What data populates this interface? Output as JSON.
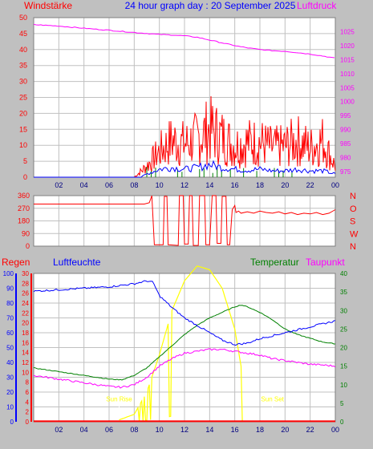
{
  "header": {
    "left": "Windstärke",
    "title": "24 hour graph day : 20 September 2025",
    "right": "Luftdruck"
  },
  "colors": {
    "wind": "#ff0000",
    "gust": "#0000ff",
    "wind_green": "#008000",
    "pressure": "#ff00ff",
    "direction": "#ff0000",
    "humidity": "#0000ff",
    "temperature": "#008000",
    "dewpoint": "#ff00ff",
    "rain": "#ff0000",
    "solar": "#ffff00",
    "axis_text": "#000080",
    "grid": "#ffffff"
  },
  "chart_data": [
    {
      "type": "line",
      "name": "wind-pressure",
      "x_ticks": [
        "02",
        "04",
        "06",
        "08",
        "10",
        "12",
        "14",
        "16",
        "18",
        "20",
        "22",
        "00"
      ],
      "y_left": {
        "ticks": [
          0,
          5,
          10,
          15,
          20,
          25,
          30,
          35,
          40,
          45,
          50
        ],
        "range": [
          0,
          50
        ]
      },
      "y_right": {
        "ticks": [
          975,
          980,
          985,
          990,
          995,
          1000,
          1005,
          1010,
          1015,
          1020,
          1025
        ],
        "range": [
          973,
          1030
        ]
      },
      "series": [
        {
          "key": "pressure",
          "axis": "right",
          "x": [
            0,
            2,
            4,
            6,
            8,
            10,
            11,
            12,
            13,
            14,
            15,
            16,
            17,
            18,
            19,
            20,
            21,
            22,
            23,
            24
          ],
          "y": [
            1027.5,
            1027,
            1026.2,
            1025.5,
            1024.7,
            1024,
            1023.8,
            1023.5,
            1023,
            1022,
            1021,
            1020,
            1019.2,
            1018.6,
            1018.2,
            1018,
            1017.5,
            1017,
            1016.3,
            1015.5
          ]
        },
        {
          "key": "wind_max",
          "axis": "left",
          "x": [
            0,
            8,
            9,
            10,
            11,
            12,
            13,
            14,
            15,
            16,
            17,
            18,
            19,
            20,
            21,
            22,
            23,
            24
          ],
          "y": [
            0,
            0,
            6,
            14,
            20,
            18,
            21,
            26,
            22,
            17,
            19,
            19,
            16,
            17,
            20,
            16,
            20,
            6
          ]
        },
        {
          "key": "gust_avg",
          "axis": "left",
          "x": [
            0,
            8.5,
            9,
            10,
            11,
            12,
            13,
            14,
            15,
            16,
            17,
            18,
            19,
            20,
            21,
            22,
            23,
            24
          ],
          "y": [
            0,
            0,
            1,
            2.5,
            3,
            2.5,
            3,
            4,
            3,
            2.5,
            2.2,
            2.5,
            2,
            2,
            2.5,
            2,
            2,
            1
          ]
        }
      ]
    },
    {
      "type": "line",
      "name": "wind-direction",
      "y_left": {
        "ticks": [
          0,
          90,
          180,
          270,
          360
        ],
        "range": [
          0,
          360
        ]
      },
      "y_right_labels": [
        "N",
        "W",
        "S",
        "O",
        "N"
      ],
      "series": [
        {
          "key": "direction",
          "x": [
            0,
            8.8,
            9.2,
            9.4,
            9.6,
            10.3,
            10.4,
            10.6,
            10.7,
            11.5,
            11.6,
            11.9,
            12.0,
            12.3,
            12.4,
            12.6,
            12.7,
            13.1,
            13.2,
            13.6,
            13.7,
            14.0,
            14.2,
            14.5,
            14.6,
            14.9,
            15.0,
            15.3,
            15.4,
            15.6,
            15.8,
            16.0,
            16.1,
            16.3,
            16.5,
            17,
            17.5,
            18,
            18.5,
            19,
            19.5,
            20,
            20.5,
            21,
            21.5,
            22,
            22.5,
            23,
            23.5,
            24
          ],
          "y": [
            300,
            300,
            310,
            360,
            10,
            10,
            355,
            355,
            10,
            5,
            360,
            360,
            15,
            15,
            360,
            360,
            5,
            5,
            360,
            360,
            10,
            10,
            360,
            360,
            20,
            20,
            355,
            355,
            10,
            10,
            260,
            290,
            240,
            250,
            235,
            245,
            235,
            250,
            240,
            235,
            245,
            230,
            240,
            225,
            235,
            230,
            240,
            225,
            235,
            260
          ]
        }
      ]
    },
    {
      "type": "line",
      "name": "humidity-temperature",
      "header": {
        "rain": "Regen",
        "humidity": "Luftfeuchte",
        "temperature": "Temperatur",
        "dewpoint": "Taupunkt"
      },
      "rain_axis": {
        "ticks": [
          0,
          2,
          4,
          6,
          8,
          10,
          12,
          14,
          16,
          18,
          20,
          22,
          24,
          26,
          28,
          30
        ],
        "range": [
          0,
          30
        ]
      },
      "humidity_axis": {
        "ticks": [
          0,
          10,
          20,
          30,
          40,
          50,
          60,
          70,
          80,
          90,
          100
        ],
        "range": [
          0,
          100
        ]
      },
      "temp_axis": {
        "ticks": [
          0,
          5,
          10,
          15,
          20,
          25,
          30,
          35,
          40
        ],
        "range": [
          0,
          40
        ]
      },
      "annotations": {
        "sunrise": "Sun Rise",
        "sunset": "Sun Set",
        "sunrise_x": 6.8,
        "sunset_x": 19.0
      },
      "series": [
        {
          "key": "humidity",
          "x": [
            0,
            2,
            4,
            6,
            7,
            8,
            9,
            9.5,
            10,
            11,
            12,
            13,
            14,
            15,
            16,
            17,
            18,
            19,
            20,
            21,
            22,
            23,
            24
          ],
          "y": [
            88,
            89,
            90,
            91,
            92,
            93,
            95,
            94,
            85,
            77,
            70,
            65,
            60,
            55,
            52,
            53,
            56,
            58,
            60,
            62,
            64,
            66,
            68
          ]
        },
        {
          "key": "temperature",
          "x": [
            0,
            2,
            4,
            6,
            7,
            8,
            9,
            10,
            11,
            12,
            13,
            14,
            15,
            16,
            16.5,
            17,
            18,
            19,
            20,
            21,
            22,
            23,
            24
          ],
          "y": [
            14.5,
            13.5,
            12.5,
            11.5,
            11.3,
            12.5,
            14.5,
            17.5,
            20.5,
            23.5,
            26,
            28,
            29.5,
            31,
            31.5,
            31,
            29.5,
            27.5,
            25,
            23.5,
            22.5,
            21.5,
            21
          ]
        },
        {
          "key": "dewpoint",
          "x": [
            0,
            2,
            4,
            6,
            7,
            8,
            9,
            10,
            11,
            12,
            13,
            14,
            15,
            16,
            17,
            18,
            19,
            20,
            21,
            22,
            23,
            24
          ],
          "y": [
            12.5,
            11.5,
            10.5,
            9.5,
            9.3,
            10,
            12,
            15,
            17,
            18.5,
            19,
            19.5,
            19.5,
            19,
            18.5,
            18,
            17,
            16.5,
            16,
            15.5,
            15.3,
            15
          ]
        },
        {
          "key": "solar",
          "x": [
            6.8,
            8,
            9,
            10,
            11,
            12,
            13,
            14,
            15,
            16,
            16.5,
            16.6
          ],
          "y": [
            0.5,
            2,
            8,
            18,
            30,
            38,
            42,
            41,
            36,
            25,
            15,
            0
          ]
        },
        {
          "key": "rain",
          "x": [
            0,
            24
          ],
          "y": [
            0.1,
            0.1
          ]
        }
      ]
    }
  ]
}
